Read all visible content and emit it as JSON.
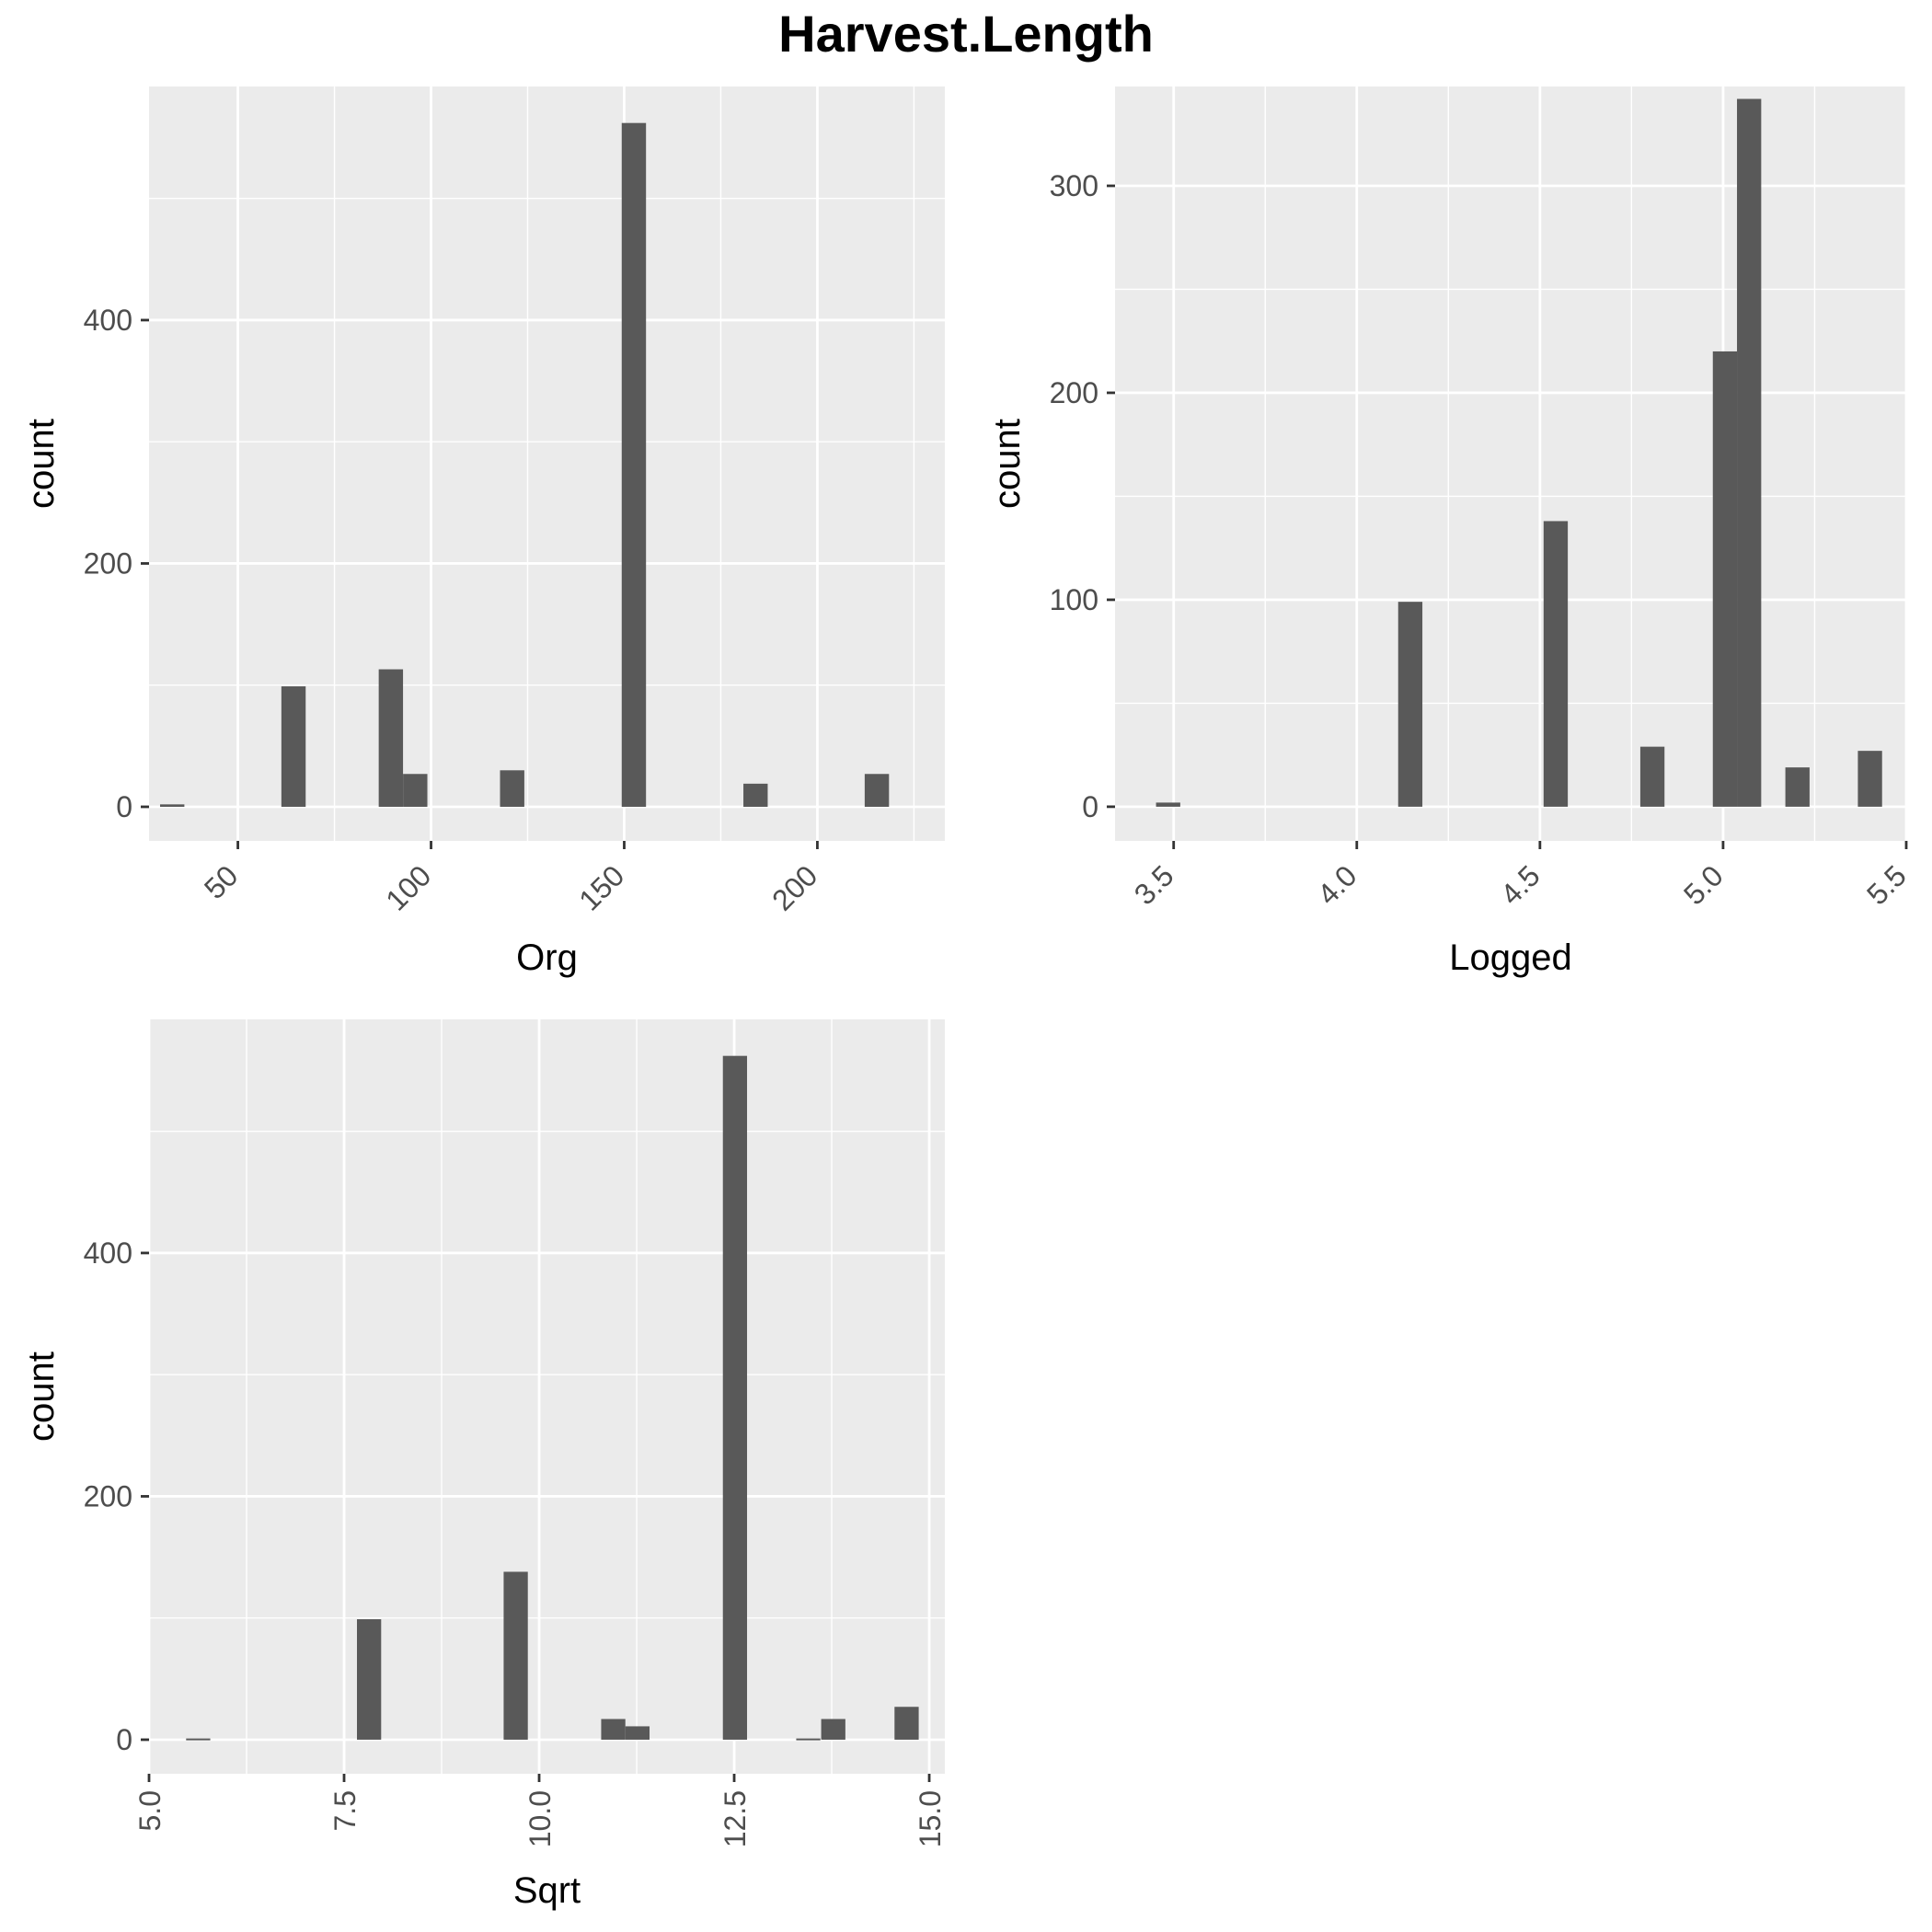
{
  "title": "Harvest.Length",
  "colors": {
    "panel": "#ebebeb",
    "grid": "#ffffff",
    "bar": "#595959",
    "tick_text": "#4d4d4d",
    "tick_mark": "#333333"
  },
  "chart_data": [
    {
      "type": "bar",
      "xlabel": "Org",
      "ylabel": "count",
      "xlim": [
        27,
        233
      ],
      "ylim": [
        -28,
        592
      ],
      "xticks": [
        {
          "v": 50,
          "label": "50"
        },
        {
          "v": 100,
          "label": "100"
        },
        {
          "v": 150,
          "label": "150"
        },
        {
          "v": 200,
          "label": "200"
        }
      ],
      "yticks": [
        {
          "v": 0,
          "label": "0"
        },
        {
          "v": 200,
          "label": "200"
        },
        {
          "v": 400,
          "label": "400"
        }
      ],
      "tick_rotation": 45,
      "bin_width": 6.29,
      "bars": [
        {
          "x": 33.0,
          "count": 2
        },
        {
          "x": 64.4,
          "count": 99
        },
        {
          "x": 89.6,
          "count": 113
        },
        {
          "x": 95.9,
          "count": 27
        },
        {
          "x": 121.0,
          "count": 30
        },
        {
          "x": 152.5,
          "count": 562
        },
        {
          "x": 184.0,
          "count": 19
        },
        {
          "x": 215.4,
          "count": 27
        }
      ]
    },
    {
      "type": "bar",
      "xlabel": "Logged",
      "ylabel": "count",
      "xlim": [
        3.34,
        5.5
      ],
      "ylim": [
        -16.5,
        348
      ],
      "xticks": [
        {
          "v": 3.5,
          "label": "3.5"
        },
        {
          "v": 4.0,
          "label": "4.0"
        },
        {
          "v": 4.5,
          "label": "4.5"
        },
        {
          "v": 5.0,
          "label": "5.0"
        },
        {
          "v": 5.5,
          "label": "5.5"
        }
      ],
      "yticks": [
        {
          "v": 0,
          "label": "0"
        },
        {
          "v": 100,
          "label": "100"
        },
        {
          "v": 200,
          "label": "200"
        },
        {
          "v": 300,
          "label": "300"
        }
      ],
      "tick_rotation": 45,
      "bin_width": 0.0661,
      "bars": [
        {
          "x": 3.485,
          "count": 2
        },
        {
          "x": 4.146,
          "count": 99
        },
        {
          "x": 4.543,
          "count": 138
        },
        {
          "x": 4.807,
          "count": 29
        },
        {
          "x": 5.005,
          "count": 220
        },
        {
          "x": 5.071,
          "count": 342
        },
        {
          "x": 5.203,
          "count": 19
        },
        {
          "x": 5.401,
          "count": 27
        }
      ]
    },
    {
      "type": "bar",
      "xlabel": "Sqrt",
      "ylabel": "count",
      "xlim": [
        5.0,
        15.2
      ],
      "ylim": [
        -28,
        592
      ],
      "xticks": [
        {
          "v": 5.0,
          "label": "5.0"
        },
        {
          "v": 7.5,
          "label": "7.5"
        },
        {
          "v": 10.0,
          "label": "10.0"
        },
        {
          "v": 12.5,
          "label": "12.5"
        },
        {
          "v": 15.0,
          "label": "15.0"
        }
      ],
      "yticks": [
        {
          "v": 0,
          "label": "0"
        },
        {
          "v": 200,
          "label": "200"
        },
        {
          "v": 400,
          "label": "400"
        }
      ],
      "tick_rotation": 90,
      "bin_width": 0.31,
      "bars": [
        {
          "x": 5.63,
          "count": 1
        },
        {
          "x": 7.82,
          "count": 99
        },
        {
          "x": 9.7,
          "count": 138
        },
        {
          "x": 10.95,
          "count": 17
        },
        {
          "x": 11.26,
          "count": 11
        },
        {
          "x": 12.51,
          "count": 562
        },
        {
          "x": 13.45,
          "count": 1
        },
        {
          "x": 13.77,
          "count": 17
        },
        {
          "x": 14.71,
          "count": 27
        }
      ]
    }
  ]
}
